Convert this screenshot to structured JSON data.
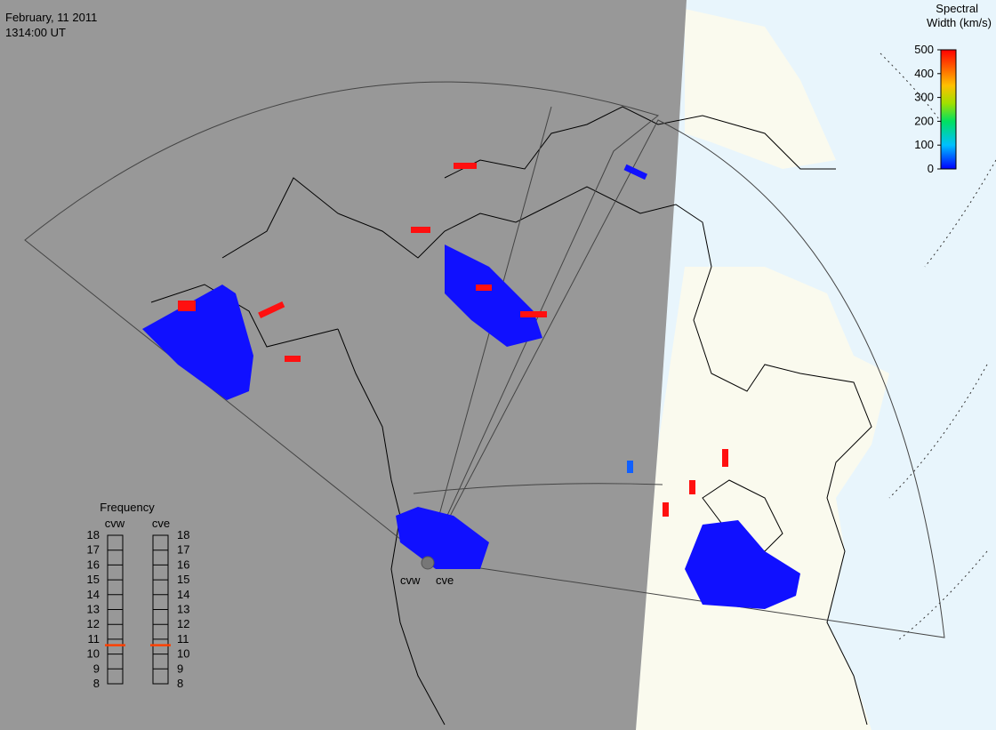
{
  "header": {
    "date": "February, 11 2011",
    "time": "1314:00 UT"
  },
  "colorbar": {
    "title": [
      "Spectral",
      "Width (km/s)"
    ],
    "range": [
      0,
      500
    ],
    "ticks": [
      0,
      100,
      200,
      300,
      400,
      500
    ]
  },
  "frequency": {
    "title": "Frequency",
    "range": [
      8,
      18
    ],
    "ticks": [
      8,
      9,
      10,
      11,
      12,
      13,
      14,
      15,
      16,
      17,
      18
    ],
    "radars": [
      {
        "name": "cvw",
        "value": 10.6
      },
      {
        "name": "cve",
        "value": 10.6
      }
    ]
  },
  "stations": [
    "cvw",
    "cve"
  ]
}
